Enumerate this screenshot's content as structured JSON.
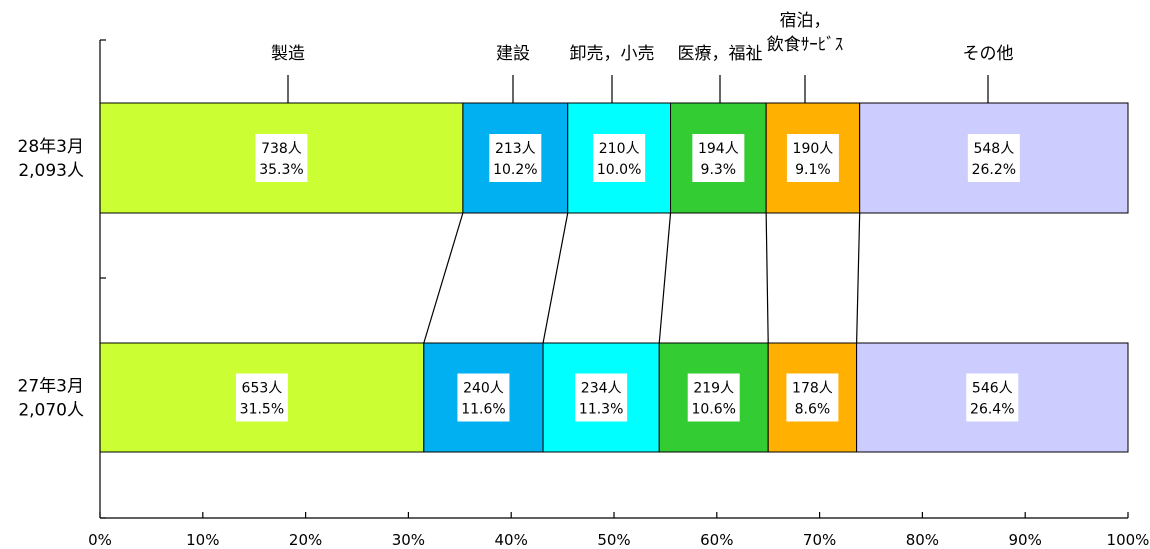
{
  "chart_data": {
    "type": "bar",
    "orientation": "horizontal",
    "stacked": "percent",
    "categories": [
      "28年3月\n2,093人",
      "27年3月\n2,070人"
    ],
    "series": [
      {
        "name": "製造",
        "color": "#ccff33",
        "counts": [
          "738人",
          "653人"
        ],
        "pcts": [
          "35.3%",
          "31.5%"
        ],
        "values": [
          35.3,
          31.5
        ]
      },
      {
        "name": "建設",
        "color": "#00b0f0",
        "counts": [
          "213人",
          "240人"
        ],
        "pcts": [
          "10.2%",
          "11.6%"
        ],
        "values": [
          10.2,
          11.6
        ]
      },
      {
        "name": "卸売，小売",
        "color": "#00ffff",
        "counts": [
          "210人",
          "234人"
        ],
        "pcts": [
          "10.0%",
          "11.3%"
        ],
        "values": [
          10.0,
          11.3
        ]
      },
      {
        "name": "医療，福祉",
        "color": "#33cc33",
        "counts": [
          "194人",
          "219人"
        ],
        "pcts": [
          "9.3%",
          "10.6%"
        ],
        "values": [
          9.3,
          10.6
        ]
      },
      {
        "name": "宿泊，\n飲食ｻｰﾋﾞｽ",
        "color": "#ffb000",
        "counts": [
          "190人",
          "178人"
        ],
        "pcts": [
          "9.1%",
          "8.6%"
        ],
        "values": [
          9.1,
          8.6
        ]
      },
      {
        "name": "その他",
        "color": "#ccccff",
        "counts": [
          "548人",
          "546人"
        ],
        "pcts": [
          "26.2%",
          "26.4%"
        ],
        "values": [
          26.2,
          26.4
        ]
      }
    ],
    "xlim": [
      0,
      100
    ],
    "xticks": [
      "0%",
      "10%",
      "20%",
      "30%",
      "40%",
      "50%",
      "60%",
      "70%",
      "80%",
      "90%",
      "100%"
    ],
    "legend_placement": "top, labels above first bar"
  }
}
